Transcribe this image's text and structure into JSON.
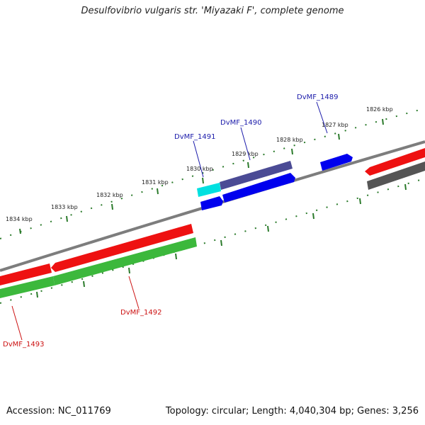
{
  "title": "Desulfovibrio vulgaris str. 'Miyazaki F', complete genome",
  "footer": {
    "accession": "Accession: NC_011769",
    "summary": "Topology: circular; Length: 4,040,304 bp; Genes: 3,256"
  },
  "scale_labels": [
    "1826 kbp",
    "1827 kbp",
    "1828 kbp",
    "1829 kbp",
    "1830 kbp",
    "1831 kbp",
    "1832 kbp",
    "1833 kbp",
    "1834 kbp"
  ],
  "gene_labels": {
    "dvmf_1489": "DvMF_1489",
    "dvmf_1490": "DvMF_1490",
    "dvmf_1491": "DvMF_1491",
    "dvmf_1492": "DvMF_1492",
    "dvmf_1493": "DvMF_1493"
  },
  "colors": {
    "backbone": "#808080",
    "tick": "#2a7a2a",
    "cds_forward": "#0000ee",
    "cds_reverse": "#ee1111",
    "gene_forward": "#3f3f8f",
    "gene_reverse": "#3cb83c",
    "gene_cyan": "#00e0e0",
    "gene_gray": "#555555",
    "label_blue": "#1a1aaa",
    "label_red": "#cc1111"
  }
}
